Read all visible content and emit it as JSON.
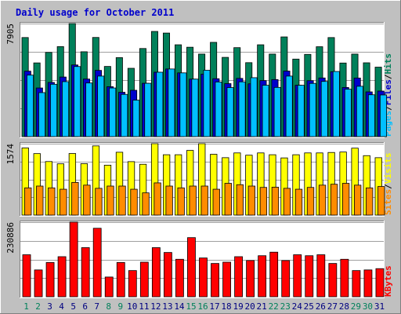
{
  "chart_data": {
    "type": "bar",
    "title": "Daily usage for October 2011",
    "categories": [
      "1",
      "2",
      "3",
      "4",
      "5",
      "6",
      "7",
      "8",
      "9",
      "10",
      "11",
      "12",
      "13",
      "14",
      "15",
      "16",
      "17",
      "18",
      "19",
      "20",
      "21",
      "22",
      "23",
      "24",
      "25",
      "26",
      "27",
      "28",
      "29",
      "30",
      "31"
    ],
    "weekend_days": [
      "1",
      "2",
      "8",
      "9",
      "15",
      "16",
      "22",
      "23",
      "29",
      "30"
    ],
    "colors": {
      "background": "#c0c0c0",
      "plot_background": "#ffffff",
      "title": "#0000cc",
      "weekday_label": "#000080",
      "weekend_label": "#00805a",
      "hits": "#00805a",
      "files": "#0000cc",
      "pages": "#00c0ff",
      "visits": "#ffff00",
      "sites": "#ff8c00",
      "kbytes": "#ff0000"
    },
    "panels": [
      {
        "name": "hits-files-pages",
        "ymax_label": "7905",
        "ymax": 7905,
        "legend": [
          "Pages",
          "/",
          "Files",
          "/",
          "Hits"
        ],
        "legend_colors": [
          "#00c0ff",
          "#000000",
          "#0000cc",
          "#000000",
          "#00805a"
        ],
        "series": [
          {
            "name": "Hits",
            "color": "#00805a",
            "values": [
              6927,
              5153,
              5887,
              6293,
              7905,
              5933,
              6932,
              4906,
              5523,
              4776,
              6160,
              7354,
              7240,
              6420,
              6250,
              5770,
              6590,
              5540,
              6220,
              5170,
              6420,
              5770,
              6970,
              5420,
              5750,
              6285,
              6925,
              5145,
              5770,
              5160,
              4856
            ]
          },
          {
            "name": "Files",
            "color": "#0000cc",
            "values": [
              4575,
              3400,
              3788,
              4166,
              5010,
              4025,
              4630,
              3488,
              3100,
              3240,
              3728,
              4502,
              4728,
              4456,
              4020,
              4366,
              4048,
              3705,
              4070,
              3690,
              3916,
              3988,
              4582,
              3590,
              3910,
              4100,
              4535,
              3435,
              4095,
              3128,
              3185
            ]
          },
          {
            "name": "Pages",
            "color": "#00c0ff",
            "values": [
              4300,
              3075,
              3660,
              3843,
              4900,
              3750,
              4232,
              3400,
              2952,
              2550,
              3728,
              4502,
              4728,
              4456,
              4020,
              4640,
              3820,
              3430,
              3830,
              4120,
              3590,
              3440,
              4232,
              3590,
              3720,
              3858,
              4555,
              3315,
              3520,
              2925,
              2912
            ]
          }
        ]
      },
      {
        "name": "visits-sites",
        "ymax_label": "1574",
        "ymax": 1574,
        "legend": [
          "Sites",
          "/",
          "Visits"
        ],
        "legend_colors": [
          "#ff8c00",
          "#000000",
          "#ffff00"
        ],
        "series": [
          {
            "name": "Visits",
            "color": "#ffff00",
            "values": [
              1480,
              1355,
              1180,
              1130,
              1357,
              1133,
              1525,
              1100,
              1385,
              1178,
              1120,
              1574,
              1330,
              1330,
              1425,
              1574,
              1340,
              1265,
              1370,
              1320,
              1370,
              1330,
              1260,
              1330,
              1370,
              1370,
              1380,
              1390,
              1475,
              1310,
              1265
            ]
          },
          {
            "name": "Sites",
            "color": "#ff8c00",
            "values": [
              600,
              640,
              600,
              570,
              720,
              660,
              590,
              640,
              640,
              570,
              490,
              710,
              640,
              600,
              640,
              640,
              570,
              700,
              670,
              640,
              610,
              615,
              590,
              570,
              610,
              660,
              680,
              700,
              660,
              600,
              630
            ]
          }
        ]
      },
      {
        "name": "kbytes",
        "ymax_label": "230886",
        "ymax": 230886,
        "legend": [
          "KBytes"
        ],
        "legend_colors": [
          "#ff0000"
        ],
        "series": [
          {
            "name": "KBytes",
            "color": "#ff0000",
            "values": [
              130000,
              83000,
              106000,
              124000,
              230886,
              152000,
              212000,
              61000,
              106000,
              81000,
              107000,
              152000,
              137000,
              116000,
              183000,
              120000,
              103000,
              107000,
              124000,
              112000,
              127000,
              138000,
              112000,
              130000,
              127000,
              130000,
              103000,
              116000,
              81000,
              83000,
              87000
            ]
          }
        ]
      }
    ]
  }
}
